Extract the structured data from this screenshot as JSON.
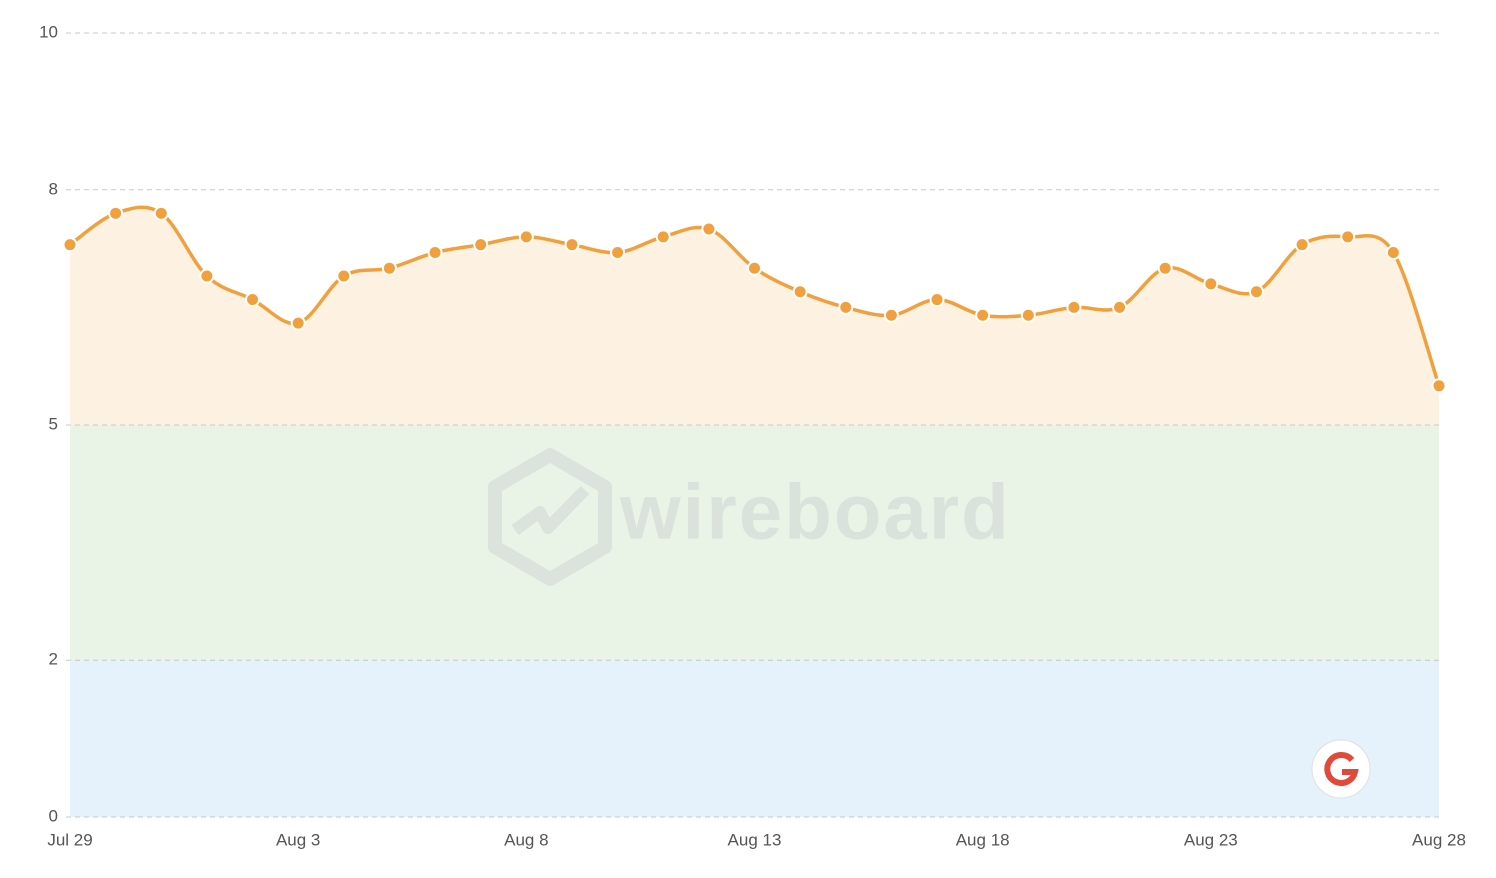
{
  "chart_data": {
    "type": "line",
    "categories": [
      "Jul 29",
      null,
      null,
      null,
      null,
      "Aug 3",
      null,
      null,
      null,
      null,
      "Aug 8",
      null,
      null,
      null,
      null,
      "Aug 13",
      null,
      null,
      null,
      null,
      "Aug 18",
      null,
      null,
      null,
      null,
      "Aug 23",
      null,
      null,
      null,
      null,
      "Aug 28"
    ],
    "values": [
      7.3,
      7.7,
      7.7,
      6.9,
      6.6,
      6.3,
      6.9,
      7.0,
      7.2,
      7.3,
      7.4,
      7.3,
      7.2,
      7.4,
      7.5,
      7.0,
      6.7,
      6.5,
      6.4,
      6.6,
      6.4,
      6.4,
      6.5,
      6.5,
      7.0,
      6.8,
      6.7,
      7.3,
      7.4,
      7.2,
      5.5
    ],
    "color": "#f0a03c",
    "area_color": "#fdf2e2",
    "area_base": 5,
    "bands": [
      {
        "from": 0,
        "to": 2,
        "color": "#e5f1fb"
      },
      {
        "from": 2,
        "to": 5,
        "color": "#e9f3e6"
      }
    ],
    "ylim": [
      0,
      10
    ],
    "yticks": [
      0,
      2,
      5,
      8,
      10
    ],
    "grid": true,
    "watermark": "wireboard"
  }
}
